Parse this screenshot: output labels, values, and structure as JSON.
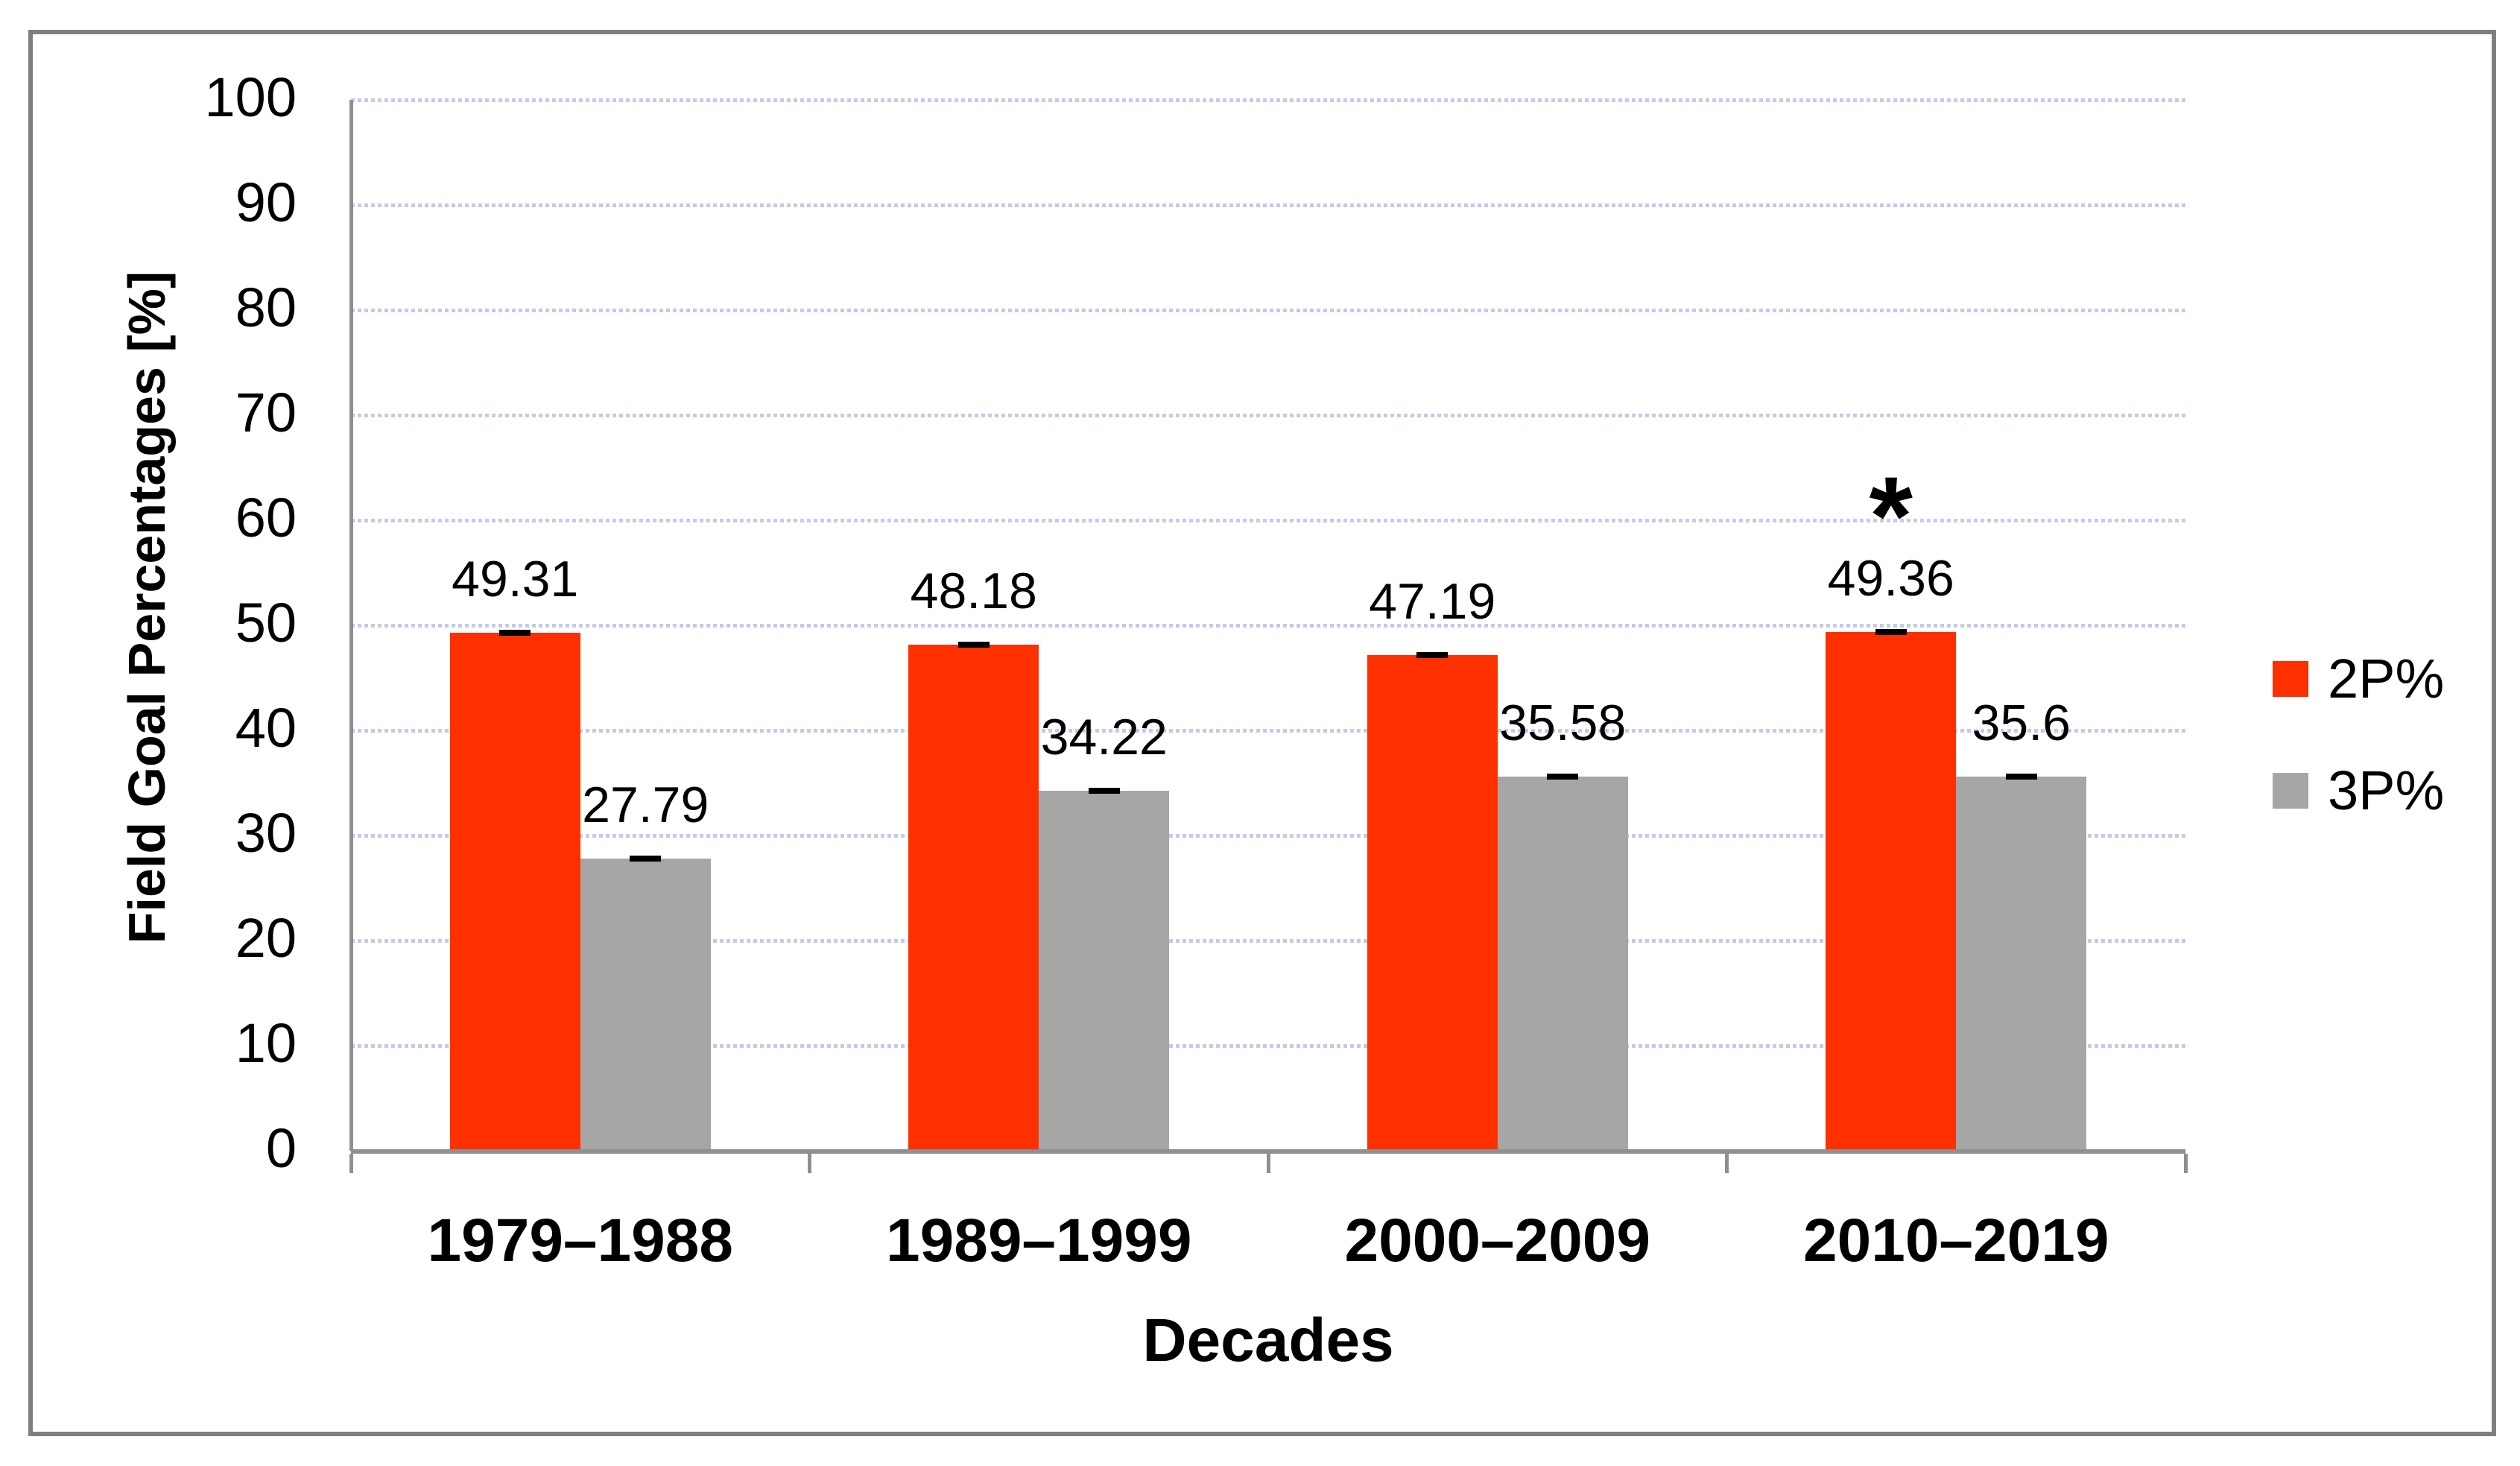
{
  "chart_data": {
    "type": "bar",
    "categories": [
      "1979–1988",
      "1989–1999",
      "2000–2009",
      "2010–2019"
    ],
    "series": [
      {
        "name": "2P%",
        "color": "#ff3000",
        "values": [
          49.31,
          48.18,
          47.19,
          49.36
        ],
        "value_labels": [
          "49.31",
          "48.18",
          "47.19",
          "49.36"
        ]
      },
      {
        "name": "3P%",
        "color": "#a6a6a6",
        "values": [
          27.79,
          34.22,
          35.58,
          35.6
        ],
        "value_labels": [
          "27.79",
          "34.22",
          "35.58",
          "35.6"
        ]
      }
    ],
    "xlabel": "Decades",
    "ylabel": "Field Goal Percentages [%]",
    "ylim": [
      0,
      100
    ],
    "yticks": [
      0,
      10,
      20,
      30,
      40,
      50,
      60,
      70,
      80,
      90,
      100
    ],
    "grid": "horizontal-dashed",
    "gridline_color": "#c3cbea",
    "axis_color": "#8f8f8f",
    "error_bars": true,
    "legend_position": "right",
    "annotation": {
      "text": "*",
      "series": "2P%",
      "category": "2010–2019"
    }
  }
}
